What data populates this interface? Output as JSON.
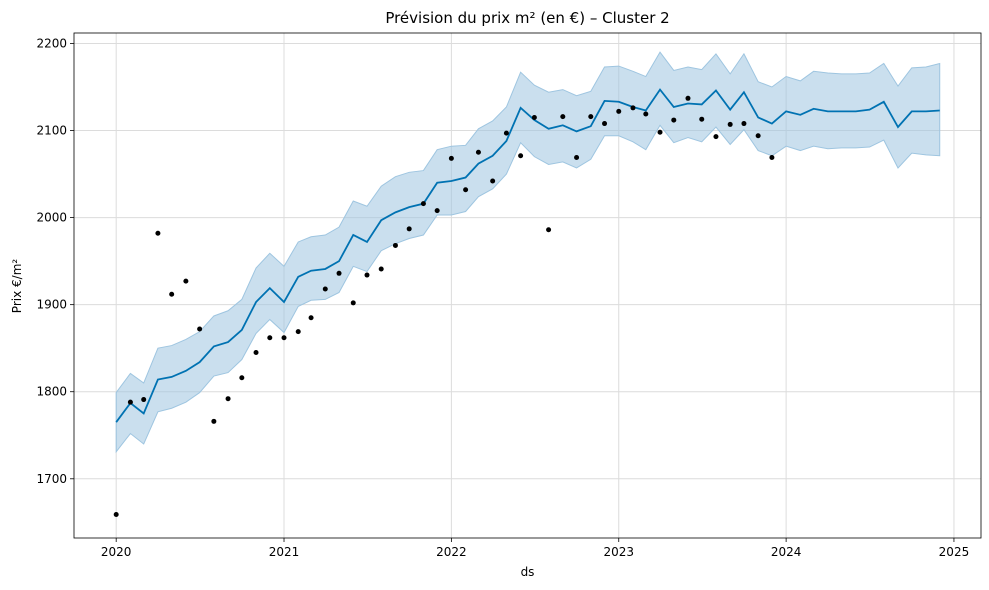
{
  "chart_data": {
    "type": "line",
    "title": "Prévision du prix m² (en €) – Cluster 2",
    "xlabel": "ds",
    "ylabel": "Prix €/m²",
    "xlim": [
      "2019-10-01",
      "2025-03-01"
    ],
    "ylim": [
      1632,
      2212
    ],
    "x_ticks": [
      "2020",
      "2021",
      "2022",
      "2023",
      "2024",
      "2025"
    ],
    "y_ticks": [
      1700,
      1800,
      1900,
      2000,
      2100,
      2200
    ],
    "grid": true,
    "colors": {
      "forecast": "#0072b2",
      "band": "#9ec5e0",
      "observed": "#000000"
    },
    "series": [
      {
        "kind": "observed",
        "x": [
          "2020-01",
          "2020-02",
          "2020-03",
          "2020-04",
          "2020-05",
          "2020-06",
          "2020-07",
          "2020-08",
          "2020-09",
          "2020-10",
          "2020-11",
          "2020-12",
          "2021-01",
          "2021-02",
          "2021-03",
          "2021-04",
          "2021-05",
          "2021-06",
          "2021-07",
          "2021-08",
          "2021-09",
          "2021-10",
          "2021-11",
          "2021-12",
          "2022-01",
          "2022-02",
          "2022-03",
          "2022-04",
          "2022-05",
          "2022-06",
          "2022-07",
          "2022-08",
          "2022-09",
          "2022-10",
          "2022-11",
          "2022-12",
          "2023-01",
          "2023-02",
          "2023-03",
          "2023-04",
          "2023-05",
          "2023-06",
          "2023-07",
          "2023-08",
          "2023-09",
          "2023-10",
          "2023-11",
          "2023-12"
        ],
        "y": [
          1659,
          1788,
          1791,
          1982,
          1912,
          1927,
          1872,
          1766,
          1792,
          1816,
          1845,
          1862,
          1862,
          1869,
          1885,
          1918,
          1936,
          1902,
          1934,
          1941,
          1968,
          1987,
          2016,
          2008,
          2068,
          2032,
          2075,
          2042,
          2097,
          2071,
          2115,
          1986,
          2116,
          2069,
          2116,
          2108,
          2122,
          2126,
          2119,
          2098,
          2112,
          2137,
          2113,
          2093,
          2107,
          2108,
          2094,
          2069
        ]
      },
      {
        "kind": "forecast",
        "x": [
          "2020-01",
          "2020-02",
          "2020-03",
          "2020-04",
          "2020-05",
          "2020-06",
          "2020-07",
          "2020-08",
          "2020-09",
          "2020-10",
          "2020-11",
          "2020-12",
          "2021-01",
          "2021-02",
          "2021-03",
          "2021-04",
          "2021-05",
          "2021-06",
          "2021-07",
          "2021-08",
          "2021-09",
          "2021-10",
          "2021-11",
          "2021-12",
          "2022-01",
          "2022-02",
          "2022-03",
          "2022-04",
          "2022-05",
          "2022-06",
          "2022-07",
          "2022-08",
          "2022-09",
          "2022-10",
          "2022-11",
          "2022-12",
          "2023-01",
          "2023-02",
          "2023-03",
          "2023-04",
          "2023-05",
          "2023-06",
          "2023-07",
          "2023-08",
          "2023-09",
          "2023-10",
          "2023-11",
          "2023-12",
          "2024-01",
          "2024-02",
          "2024-03",
          "2024-04",
          "2024-05",
          "2024-06",
          "2024-07",
          "2024-08",
          "2024-09",
          "2024-10",
          "2024-11",
          "2024-12"
        ],
        "y": [
          1765,
          1787,
          1775,
          1814,
          1817,
          1824,
          1834,
          1852,
          1857,
          1871,
          1903,
          1919,
          1903,
          1932,
          1939,
          1941,
          1950,
          1980,
          1972,
          1997,
          2006,
          2012,
          2016,
          2040,
          2042,
          2046,
          2062,
          2071,
          2088,
          2126,
          2112,
          2102,
          2106,
          2099,
          2105,
          2134,
          2133,
          2127,
          2123,
          2147,
          2127,
          2131,
          2130,
          2146,
          2124,
          2144,
          2115,
          2108,
          2122,
          2118,
          2125,
          2122,
          2122,
          2122,
          2124,
          2133,
          2104,
          2122,
          2122,
          2123
        ],
        "lower": [
          1731,
          1752,
          1740,
          1777,
          1781,
          1788,
          1799,
          1818,
          1822,
          1837,
          1867,
          1883,
          1868,
          1898,
          1905,
          1906,
          1914,
          1944,
          1938,
          1962,
          1970,
          1976,
          1980,
          2003,
          2003,
          2007,
          2024,
          2033,
          2050,
          2086,
          2070,
          2061,
          2064,
          2057,
          2067,
          2094,
          2094,
          2087,
          2078,
          2106,
          2086,
          2092,
          2087,
          2104,
          2084,
          2101,
          2077,
          2071,
          2082,
          2077,
          2082,
          2079,
          2080,
          2080,
          2081,
          2089,
          2057,
          2074,
          2072,
          2071
        ],
        "upper": [
          1799,
          1821,
          1810,
          1850,
          1853,
          1860,
          1869,
          1887,
          1893,
          1906,
          1942,
          1959,
          1944,
          1972,
          1978,
          1980,
          1989,
          2019,
          2013,
          2036,
          2047,
          2052,
          2054,
          2078,
          2082,
          2083,
          2102,
          2111,
          2127,
          2167,
          2152,
          2144,
          2147,
          2140,
          2145,
          2173,
          2174,
          2168,
          2162,
          2190,
          2169,
          2173,
          2170,
          2188,
          2165,
          2188,
          2156,
          2150,
          2162,
          2157,
          2168,
          2166,
          2165,
          2165,
          2166,
          2177,
          2151,
          2172,
          2173,
          2177
        ]
      }
    ]
  }
}
